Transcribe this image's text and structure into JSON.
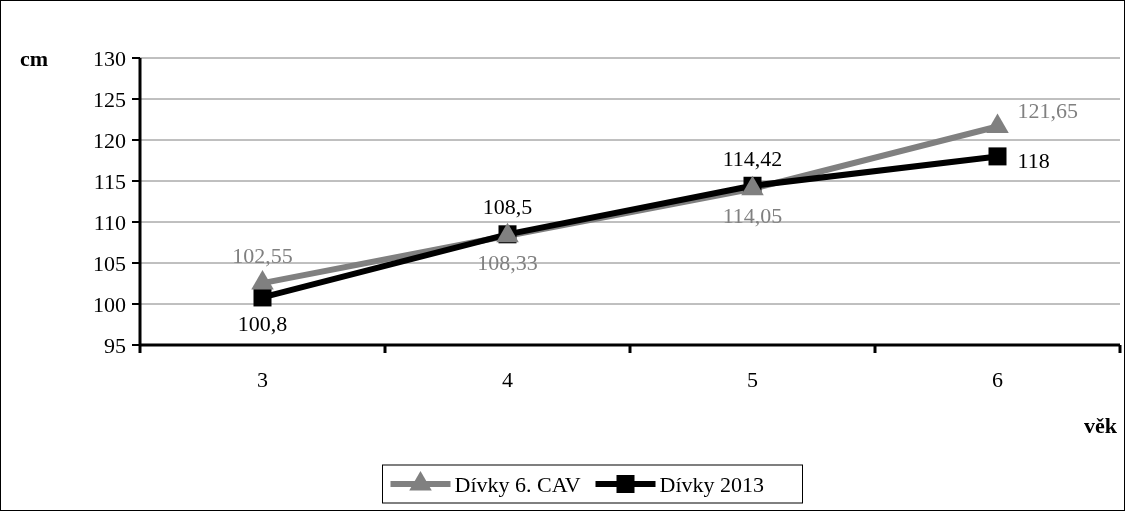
{
  "chart_data": {
    "type": "line",
    "categories": [
      "3",
      "4",
      "5",
      "6"
    ],
    "xlabel": "věk",
    "ylabel": "cm",
    "ylim": [
      95,
      130
    ],
    "yticks": [
      95,
      100,
      105,
      110,
      115,
      120,
      125,
      130
    ],
    "grid": "y",
    "legend": "bottom",
    "series": [
      {
        "name": "Dívky 6. CAV",
        "color": "#808080",
        "marker": "triangle",
        "values": [
          102.55,
          108.33,
          114.05,
          121.65
        ],
        "value_labels": [
          "102,55",
          "108,33",
          "114,05",
          "121,65"
        ]
      },
      {
        "name": "Dívky 2013",
        "color": "#000000",
        "marker": "square",
        "values": [
          100.8,
          108.5,
          114.42,
          118
        ],
        "value_labels": [
          "100,8",
          "108,5",
          "114,42",
          "118"
        ]
      }
    ]
  }
}
